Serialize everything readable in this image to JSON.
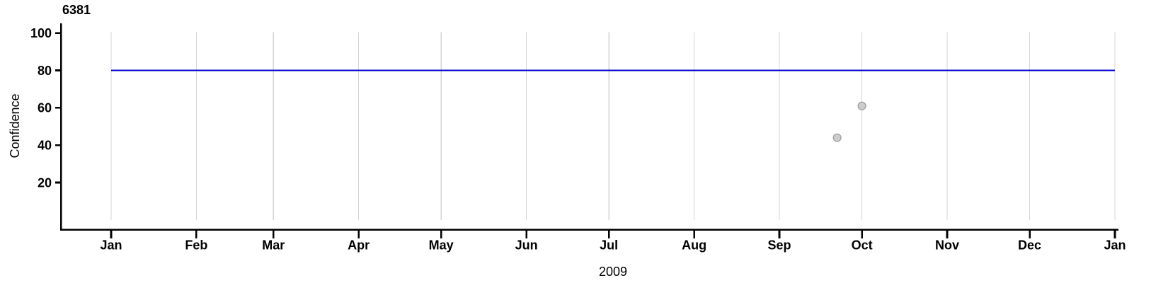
{
  "chart_data": {
    "type": "scatter",
    "title": "6381",
    "xlabel": "2009",
    "ylabel": "Confidence",
    "x_axis": {
      "grid": true,
      "range_days": [
        0,
        365
      ],
      "ticks": [
        {
          "label": "Jan",
          "day": 0
        },
        {
          "label": "Feb",
          "day": 31
        },
        {
          "label": "Mar",
          "day": 59
        },
        {
          "label": "Apr",
          "day": 90
        },
        {
          "label": "May",
          "day": 120
        },
        {
          "label": "Jun",
          "day": 151
        },
        {
          "label": "Jul",
          "day": 181
        },
        {
          "label": "Aug",
          "day": 212
        },
        {
          "label": "Sep",
          "day": 243
        },
        {
          "label": "Oct",
          "day": 273
        },
        {
          "label": "Nov",
          "day": 304
        },
        {
          "label": "Dec",
          "day": 334
        },
        {
          "label": "Jan",
          "day": 365
        }
      ]
    },
    "y_axis": {
      "ticks": [
        20,
        40,
        60,
        80,
        100
      ],
      "range": [
        0,
        105
      ]
    },
    "reference_line": {
      "value": 80,
      "span_days": [
        0,
        365
      ],
      "color": "#0000cc"
    },
    "points": [
      {
        "date": "2009-09-22",
        "day": 264,
        "value": 44
      },
      {
        "date": "2009-10-01",
        "day": 273,
        "value": 61
      }
    ],
    "colors": {
      "grid": "#d4d4d4",
      "axis": "#000000",
      "point_fill": "#cdcdcd",
      "point_stroke": "#9e9e9e",
      "reference": "#0000cc"
    }
  }
}
